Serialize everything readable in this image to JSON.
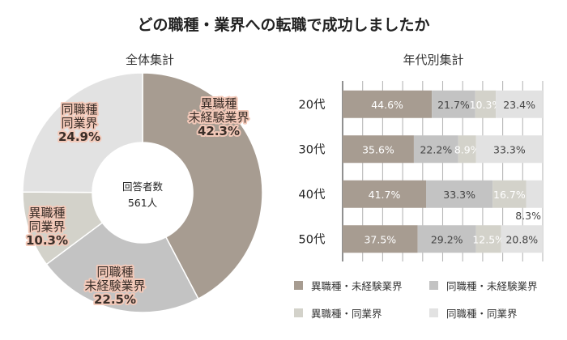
{
  "title": "どの職種・業界への転職で成功しましたか",
  "chart_data": [
    {
      "type": "pie",
      "title": "全体集計",
      "center_label": "回答者数",
      "center_value": "561人",
      "slices": [
        {
          "label": [
            "異職種",
            "未経験業界"
          ],
          "value": 42.3,
          "value_text": "42.3%",
          "color": "#a79c91"
        },
        {
          "label": [
            "同職種",
            "未経験業界"
          ],
          "value": 22.5,
          "value_text": "22.5%",
          "color": "#c3c3c3"
        },
        {
          "label": [
            "異職種",
            "同業界"
          ],
          "value": 10.3,
          "value_text": "10.3%",
          "color": "#d3d2ca"
        },
        {
          "label": [
            "同職種",
            "同業界"
          ],
          "value": 24.9,
          "value_text": "24.9%",
          "color": "#e2e2e2"
        }
      ]
    },
    {
      "type": "bar",
      "stacked": true,
      "orientation": "horizontal",
      "title": "年代別集計",
      "categories": [
        "20代",
        "30代",
        "40代",
        "50代"
      ],
      "series": [
        {
          "name": "異職種・未経験業界",
          "color": "#a79c91",
          "values": [
            44.6,
            35.6,
            41.7,
            37.5
          ],
          "labels": [
            "44.6%",
            "35.6%",
            "41.7%",
            "37.5%"
          ]
        },
        {
          "name": "同職種・未経験業界",
          "color": "#c3c3c3",
          "values": [
            21.7,
            22.2,
            33.3,
            29.2
          ],
          "labels": [
            "21.7%",
            "22.2%",
            "33.3%",
            "29.2%"
          ]
        },
        {
          "name": "異職種・同業界",
          "color": "#d3d2ca",
          "values": [
            10.3,
            8.9,
            16.7,
            12.5
          ],
          "labels": [
            "10.3%",
            "8.9%",
            "16.7%",
            "12.5%"
          ]
        },
        {
          "name": "同職種・同業界",
          "color": "#e2e2e2",
          "values": [
            23.4,
            33.3,
            8.3,
            20.8
          ],
          "labels": [
            "23.4%",
            "33.3%",
            "8.3%",
            "20.8%"
          ]
        }
      ],
      "xlim": [
        0,
        100
      ],
      "grid": true
    }
  ]
}
